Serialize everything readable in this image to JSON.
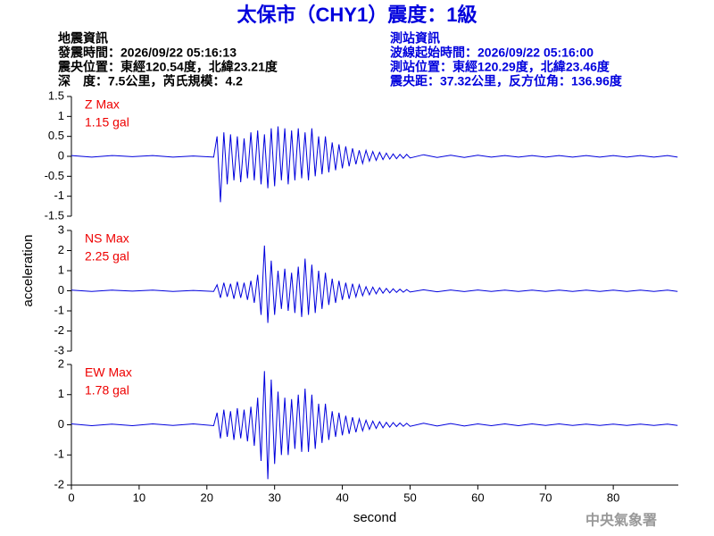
{
  "header": {
    "title": "太保市（CHY1）震度：1級",
    "left": [
      "地震資訊",
      "發震時間：2026/09/22 05:16:13",
      "震央位置：東經120.54度，北緯23.21度",
      "深　度：7.5公里，芮氏規模：4.2"
    ],
    "right": [
      "測站資訊",
      "波線起始時間：2026/09/22 05:16:00",
      "測站位置：東經120.29度，北緯23.46度",
      "震央距：37.32公里，反方位角：136.96度"
    ],
    "footer": "中央氣象署"
  },
  "chart_data": {
    "type": "line",
    "xlabel": "second",
    "ylabel": "acceleration",
    "xlim": [
      0,
      89.6
    ],
    "xticks": [
      0,
      10,
      20,
      30,
      40,
      50,
      60,
      70,
      80
    ],
    "color": "#0000dd",
    "x": [
      0,
      3,
      6,
      9,
      12,
      15,
      18,
      21,
      21.5,
      22,
      22.5,
      23,
      23.5,
      24,
      24.5,
      25,
      25.5,
      26,
      26.5,
      27,
      27.5,
      28,
      28.5,
      29,
      29.5,
      30,
      30.5,
      31,
      31.5,
      32,
      32.5,
      33,
      33.5,
      34,
      34.5,
      35,
      35.5,
      36,
      36.5,
      37,
      37.5,
      38,
      38.5,
      39,
      39.5,
      40,
      40.5,
      41,
      41.5,
      42,
      42.5,
      43,
      43.5,
      44,
      44.5,
      45,
      45.5,
      46,
      46.5,
      47,
      47.5,
      48,
      48.5,
      49,
      49.5,
      50,
      52,
      54,
      56,
      58,
      60,
      62,
      64,
      66,
      68,
      70,
      72,
      74,
      76,
      78,
      80,
      82,
      84,
      86,
      88,
      89.5
    ],
    "panels": [
      {
        "label": "Z Max",
        "max_label": "1.15 gal",
        "ylim": [
          -1.5,
          1.5
        ],
        "yticks": [
          -1.5,
          -1,
          -0.5,
          0,
          0.5,
          1,
          1.5
        ],
        "values": [
          0.02,
          -0.02,
          0.02,
          -0.01,
          0.02,
          -0.02,
          0.01,
          -0.02,
          0.5,
          -1.15,
          0.6,
          -0.7,
          0.55,
          -0.6,
          0.5,
          -0.65,
          0.45,
          -0.55,
          0.6,
          -0.6,
          0.65,
          -0.7,
          0.55,
          -0.8,
          0.7,
          -0.75,
          0.75,
          -0.6,
          0.7,
          -0.7,
          0.65,
          -0.6,
          0.7,
          -0.55,
          0.6,
          -0.6,
          0.7,
          -0.5,
          0.5,
          -0.45,
          0.5,
          -0.4,
          0.35,
          -0.35,
          0.3,
          -0.3,
          0.25,
          -0.25,
          0.2,
          -0.2,
          0.15,
          -0.18,
          0.15,
          -0.12,
          0.12,
          -0.1,
          0.1,
          -0.08,
          0.08,
          -0.07,
          0.06,
          -0.06,
          0.05,
          -0.05,
          0.05,
          -0.04,
          0.04,
          -0.03,
          0.03,
          -0.03,
          0.03,
          -0.02,
          0.02,
          -0.02,
          0.02,
          -0.02,
          0.02,
          -0.02,
          0.02,
          -0.02,
          0.02,
          -0.02,
          0.02,
          -0.02,
          0.02,
          -0.02
        ]
      },
      {
        "label": "NS Max",
        "max_label": "2.25 gal",
        "ylim": [
          -3,
          3
        ],
        "yticks": [
          -3,
          -2,
          -1,
          0,
          1,
          2,
          3
        ],
        "values": [
          0.03,
          -0.03,
          0.03,
          -0.02,
          0.03,
          -0.03,
          0.02,
          -0.03,
          0.3,
          -0.35,
          0.4,
          -0.3,
          0.35,
          -0.4,
          0.45,
          -0.35,
          0.4,
          -0.45,
          0.5,
          -0.6,
          0.8,
          -1.2,
          2.25,
          -1.6,
          1.5,
          -1.2,
          1.0,
          -0.9,
          1.1,
          -1.0,
          0.9,
          -1.1,
          1.2,
          -1.3,
          1.6,
          -1.2,
          1.3,
          -1.1,
          1.0,
          -0.9,
          0.9,
          -0.7,
          0.6,
          -0.6,
          0.5,
          -0.45,
          0.4,
          -0.4,
          0.35,
          -0.3,
          0.3,
          -0.25,
          0.2,
          -0.2,
          0.18,
          -0.15,
          0.15,
          -0.12,
          0.12,
          -0.1,
          0.1,
          -0.08,
          0.08,
          -0.07,
          0.06,
          -0.06,
          0.05,
          -0.05,
          0.04,
          -0.04,
          0.04,
          -0.03,
          0.03,
          -0.03,
          0.03,
          -0.03,
          0.03,
          -0.03,
          0.03,
          -0.03,
          0.03,
          -0.03,
          0.03,
          -0.03,
          0.03,
          -0.03
        ]
      },
      {
        "label": "EW Max",
        "max_label": "1.78 gal",
        "ylim": [
          -2,
          2
        ],
        "yticks": [
          -2,
          -1,
          0,
          1,
          2
        ],
        "values": [
          0.03,
          -0.03,
          0.02,
          -0.03,
          0.03,
          -0.02,
          0.03,
          -0.03,
          0.4,
          -0.45,
          0.5,
          -0.4,
          0.45,
          -0.5,
          0.55,
          -0.45,
          0.5,
          -0.55,
          0.6,
          -0.7,
          0.9,
          -1.2,
          1.78,
          -1.8,
          1.5,
          -1.3,
          1.1,
          -1.0,
          0.9,
          -1.0,
          0.85,
          -0.8,
          1.0,
          -0.9,
          1.2,
          -0.9,
          1.0,
          -0.8,
          0.7,
          -0.6,
          0.7,
          -0.5,
          0.45,
          -0.4,
          0.4,
          -0.35,
          0.3,
          -0.3,
          0.25,
          -0.25,
          0.2,
          -0.2,
          0.15,
          -0.15,
          0.12,
          -0.12,
          0.1,
          -0.1,
          0.08,
          -0.08,
          0.07,
          -0.06,
          0.06,
          -0.05,
          0.05,
          -0.05,
          0.05,
          -0.04,
          0.04,
          -0.04,
          0.03,
          -0.03,
          0.03,
          -0.03,
          0.03,
          -0.02,
          0.03,
          -0.02,
          0.02,
          -0.02,
          0.02,
          -0.02,
          0.02,
          -0.02,
          0.02,
          -0.02
        ]
      }
    ]
  }
}
